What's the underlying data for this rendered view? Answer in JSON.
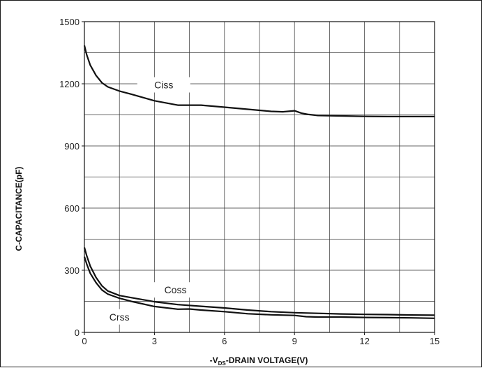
{
  "chart_data": {
    "type": "line",
    "xlabel": {
      "prefix": "-V",
      "subscript": "DS",
      "suffix": "-DRAIN VOLTAGE(V)"
    },
    "ylabel": "C-CAPACITANCE(pF)",
    "xlim": [
      0,
      15
    ],
    "ylim": [
      0,
      1500
    ],
    "x_ticks": [
      0,
      3,
      6,
      9,
      12,
      15
    ],
    "y_ticks": [
      0,
      300,
      600,
      900,
      1200,
      1500
    ],
    "grid": true,
    "series": [
      {
        "name": "Ciss",
        "color": "#111111",
        "x": [
          0,
          0.1,
          0.25,
          0.5,
          0.75,
          1.0,
          1.5,
          2.0,
          3.0,
          4.0,
          5.0,
          6.0,
          7.0,
          8.0,
          8.5,
          9.0,
          9.3,
          9.6,
          10.0,
          11.0,
          12.0,
          13.0,
          14.0,
          15.0
        ],
        "y": [
          1385,
          1340,
          1290,
          1240,
          1205,
          1185,
          1165,
          1150,
          1118,
          1097,
          1097,
          1087,
          1077,
          1067,
          1065,
          1070,
          1058,
          1052,
          1047,
          1045,
          1043,
          1042,
          1042,
          1042
        ]
      },
      {
        "name": "Coss",
        "color": "#111111",
        "x": [
          0,
          0.1,
          0.25,
          0.5,
          0.75,
          1.0,
          1.5,
          2.0,
          3.0,
          4.0,
          5.0,
          6.0,
          7.0,
          8.0,
          9.0,
          10.0,
          11.0,
          12.0,
          13.0,
          14.0,
          15.0
        ],
        "y": [
          410,
          370,
          320,
          265,
          225,
          200,
          178,
          168,
          148,
          134,
          126,
          118,
          108,
          100,
          95,
          92,
          89,
          87,
          86,
          84,
          83
        ]
      },
      {
        "name": "Crss",
        "color": "#111111",
        "x": [
          0,
          0.1,
          0.25,
          0.5,
          0.75,
          1.0,
          1.5,
          2.0,
          3.0,
          4.0,
          4.5,
          5.0,
          6.0,
          7.0,
          8.0,
          9.0,
          9.5,
          10.0,
          11.0,
          12.0,
          13.0,
          14.0,
          15.0
        ],
        "y": [
          365,
          330,
          285,
          240,
          205,
          185,
          165,
          150,
          125,
          112,
          113,
          108,
          100,
          90,
          85,
          82,
          76,
          74,
          74,
          72,
          71,
          70,
          68
        ]
      }
    ]
  }
}
